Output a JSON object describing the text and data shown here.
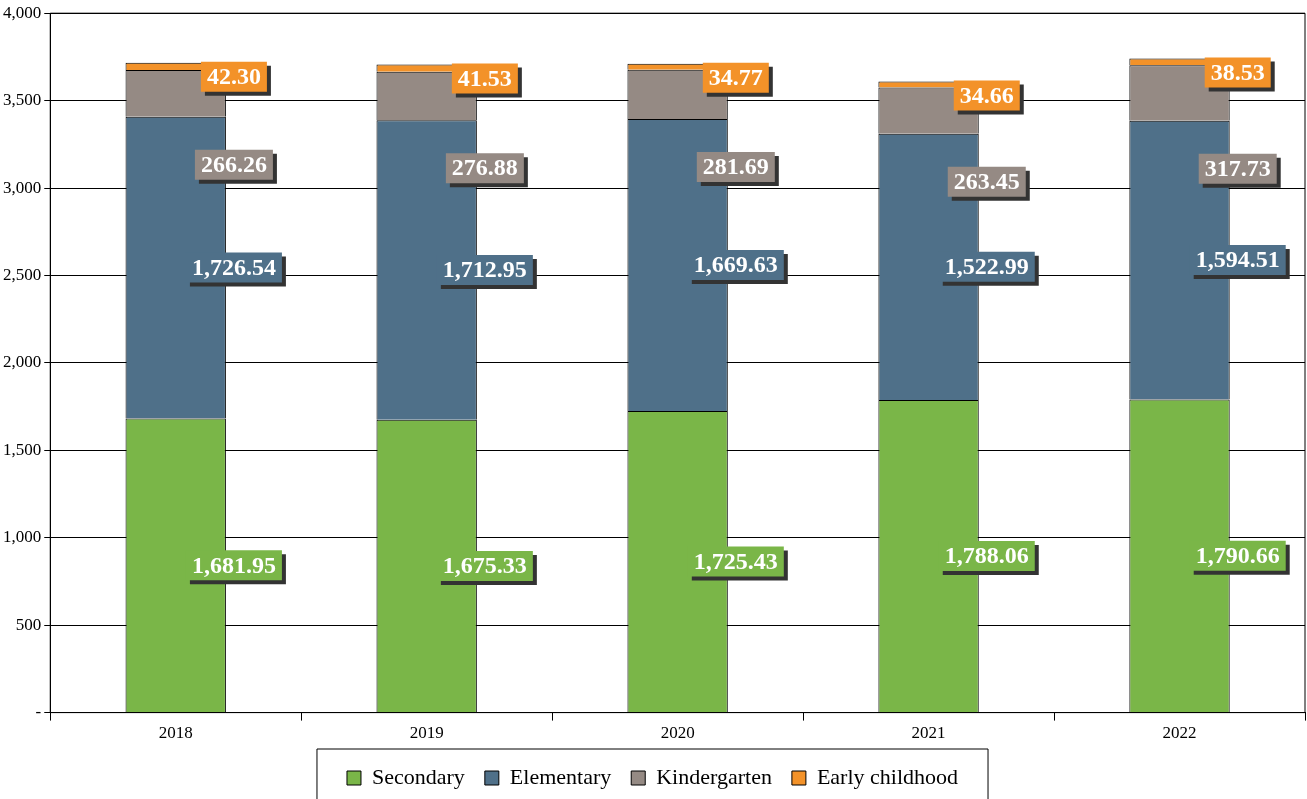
{
  "chart_data": {
    "type": "bar",
    "stacked": true,
    "categories": [
      "2018",
      "2019",
      "2020",
      "2021",
      "2022"
    ],
    "series": [
      {
        "name": "Secondary",
        "color": "#7ab648",
        "values": [
          1681.95,
          1675.33,
          1725.43,
          1788.06,
          1790.66
        ],
        "value_labels": [
          "1,681.95",
          "1,675.33",
          "1,725.43",
          "1,788.06",
          "1,790.66"
        ]
      },
      {
        "name": "Elementary",
        "color": "#4f7089",
        "values": [
          1726.54,
          1712.95,
          1669.63,
          1522.99,
          1594.51
        ],
        "value_labels": [
          "1,726.54",
          "1,712.95",
          "1,669.63",
          "1,522.99",
          "1,594.51"
        ]
      },
      {
        "name": "Kindergarten",
        "color": "#958a84",
        "values": [
          266.26,
          276.88,
          281.69,
          263.45,
          317.73
        ],
        "value_labels": [
          "266.26",
          "276.88",
          "281.69",
          "263.45",
          "317.73"
        ]
      },
      {
        "name": "Early childhood",
        "color": "#f39229",
        "values": [
          42.3,
          41.53,
          34.77,
          34.66,
          38.53
        ],
        "value_labels": [
          "42.30",
          "41.53",
          "34.77",
          "34.66",
          "38.53"
        ]
      }
    ],
    "ylim": [
      0,
      4000
    ],
    "yticks": [
      {
        "value": 0,
        "label": "-"
      },
      500,
      {
        "value": 1000,
        "label": "1,000"
      },
      {
        "value": 1500,
        "label": "1,500"
      },
      {
        "value": 2000,
        "label": "2,000"
      },
      {
        "value": 2500,
        "label": "2,500"
      },
      {
        "value": 3000,
        "label": "3,000"
      },
      {
        "value": 3500,
        "label": "3,500"
      },
      {
        "value": 4000,
        "label": "4,000"
      }
    ],
    "grid": "y",
    "legend": "bottom"
  }
}
